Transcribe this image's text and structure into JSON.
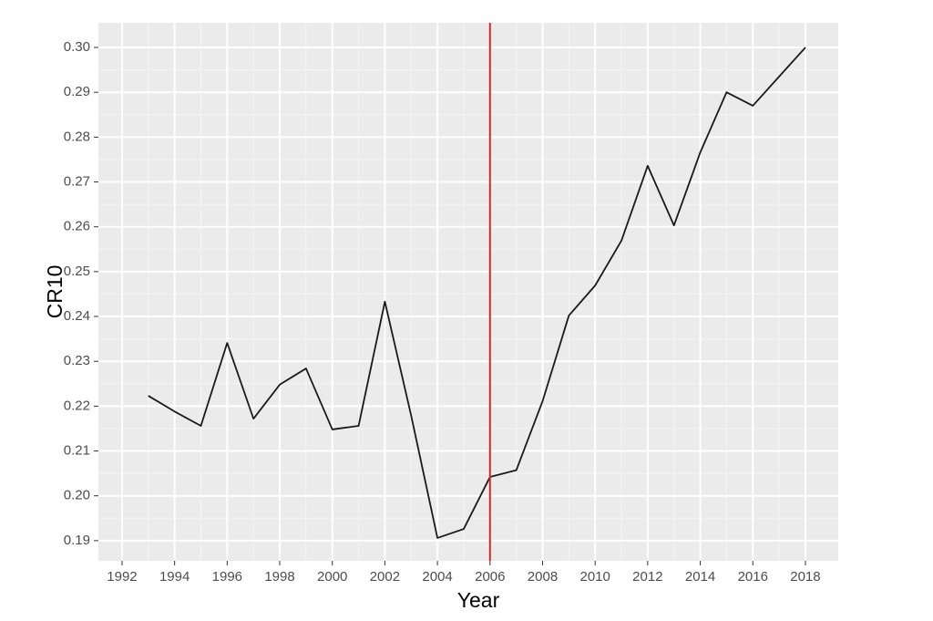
{
  "chart_data": {
    "type": "line",
    "x_label": "Year",
    "y_label": "CR10",
    "x": [
      1993,
      1994,
      1995,
      1996,
      1997,
      1998,
      1999,
      2000,
      2001,
      2002,
      2003,
      2004,
      2005,
      2006,
      2007,
      2008,
      2009,
      2010,
      2011,
      2012,
      2013,
      2014,
      2015,
      2016,
      2017,
      2018
    ],
    "series": [
      {
        "name": "CR10",
        "color": "#1a1a1a",
        "values": [
          0.2223,
          0.2188,
          0.2156,
          0.2341,
          0.2172,
          0.2248,
          0.2284,
          0.2148,
          0.2156,
          0.2433,
          0.2179,
          0.1906,
          0.1926,
          0.2042,
          0.2057,
          0.2211,
          0.2402,
          0.2469,
          0.2569,
          0.2736,
          0.2603,
          0.2766,
          0.29,
          0.287,
          0.2935,
          0.3
        ]
      }
    ],
    "vline": {
      "x": 2006,
      "color": "#d62728"
    },
    "xlim": [
      1991.1,
      2019.25
    ],
    "ylim": [
      0.1855,
      0.3055
    ],
    "xticks": [
      1992,
      1994,
      1996,
      1998,
      2000,
      2002,
      2004,
      2006,
      2008,
      2010,
      2012,
      2014,
      2016,
      2018
    ],
    "yticks": [
      0.19,
      {
        "value": 0.2,
        "label": "0.20"
      },
      0.21,
      0.22,
      0.23,
      0.24,
      0.25,
      0.26,
      0.27,
      0.28,
      0.29,
      {
        "value": 0.3,
        "label": "0.30"
      }
    ],
    "grid": true
  }
}
